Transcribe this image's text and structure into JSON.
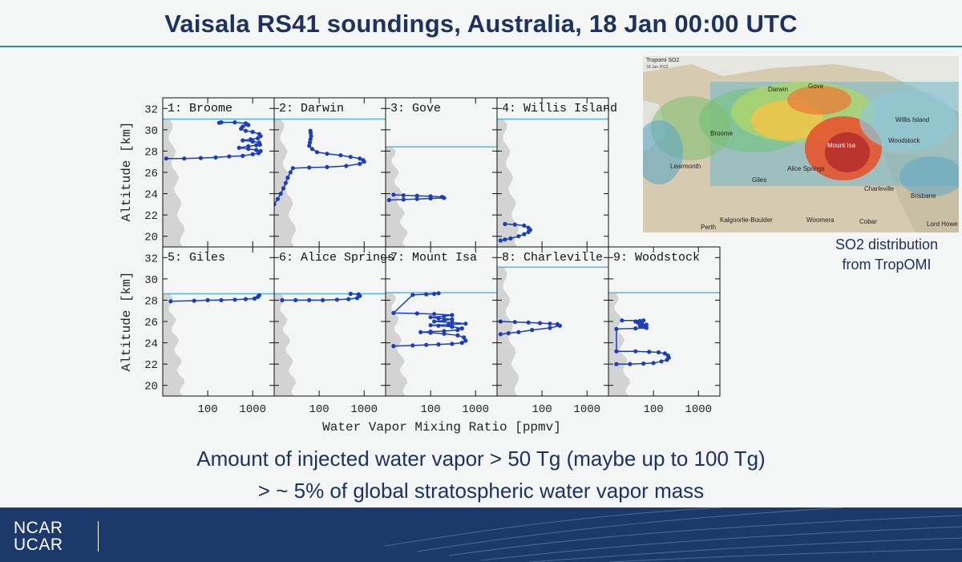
{
  "slide": {
    "title": "Vaisala RS41 soundings, Australia, 18 Jan 00:00 UTC",
    "statement_line1": "Amount of injected water vapor > 50 Tg (maybe up to 100 Tg)",
    "statement_line2": "> ~ 5% of global stratospheric water vapor mass"
  },
  "footer": {
    "logo_line1": "NCAR",
    "logo_line2": "UCAR"
  },
  "map": {
    "title": "Tropomi SO2",
    "subtitle": "18 Jan 2022",
    "caption_line1": "SO2 distribution",
    "caption_line2": "from TropOMI",
    "labels": [
      "Darwin",
      "Gove",
      "Broome",
      "Willis Island",
      "Mount Isa",
      "Woodstock",
      "Learmonth",
      "Giles",
      "Alice Springs",
      "Charleville",
      "Brisbane",
      "Kalgoorlie-Boulder",
      "Woomera",
      "Cobar",
      "Lord Howe",
      "Perth"
    ]
  },
  "colors": {
    "title": "#1c3262",
    "sounding": "#1a3ebd",
    "tropopause": "#58b7df",
    "background": "#d3d3d3",
    "footer": "#1b3a6b"
  },
  "chart_data": {
    "type": "scatter",
    "x_scale": "log",
    "xlim": [
      10,
      3000
    ],
    "ylim": [
      19,
      33
    ],
    "xlabel": "Water Vapor Mixing Ratio [ppmv]",
    "ylabel": "Altitude [km]",
    "x_ticks": [
      "100",
      "1000"
    ],
    "y_ticks": [
      20,
      22,
      24,
      26,
      28,
      30,
      32
    ],
    "panels": [
      {
        "name": "1: Broome",
        "tropopause_km": 31.0,
        "points": [
          [
            12,
            27.3
          ],
          [
            30,
            27.3
          ],
          [
            70,
            27.35
          ],
          [
            150,
            27.4
          ],
          [
            300,
            27.5
          ],
          [
            600,
            27.55
          ],
          [
            1000,
            27.7
          ],
          [
            1350,
            27.8
          ],
          [
            1500,
            28.0
          ],
          [
            1200,
            28.1
          ],
          [
            800,
            28.2
          ],
          [
            500,
            28.3
          ],
          [
            800,
            28.45
          ],
          [
            1200,
            28.55
          ],
          [
            1450,
            28.6
          ],
          [
            1400,
            28.8
          ],
          [
            1000,
            28.9
          ],
          [
            600,
            29.0
          ],
          [
            900,
            29.1
          ],
          [
            1300,
            29.2
          ],
          [
            1500,
            29.4
          ],
          [
            1400,
            29.6
          ],
          [
            1000,
            29.8
          ],
          [
            700,
            29.9
          ],
          [
            550,
            30.1
          ],
          [
            600,
            30.3
          ],
          [
            800,
            30.45
          ],
          [
            700,
            30.6
          ],
          [
            400,
            30.7
          ],
          [
            200,
            30.7
          ],
          [
            180,
            30.65
          ]
        ]
      },
      {
        "name": "2: Darwin",
        "tropopause_km": 31.0,
        "points": [
          [
            10,
            23.0
          ],
          [
            12,
            23.5
          ],
          [
            14,
            24.0
          ],
          [
            16,
            24.5
          ],
          [
            18,
            25.0
          ],
          [
            20,
            25.5
          ],
          [
            23,
            26.0
          ],
          [
            26,
            26.4
          ],
          [
            60,
            26.45
          ],
          [
            150,
            26.5
          ],
          [
            400,
            26.6
          ],
          [
            800,
            26.8
          ],
          [
            1000,
            27.0
          ],
          [
            950,
            27.15
          ],
          [
            800,
            27.3
          ],
          [
            500,
            27.45
          ],
          [
            300,
            27.6
          ],
          [
            150,
            27.75
          ],
          [
            90,
            27.9
          ],
          [
            70,
            28.2
          ],
          [
            60,
            28.5
          ],
          [
            62,
            28.8
          ],
          [
            64,
            29.1
          ],
          [
            66,
            29.4
          ],
          [
            65,
            29.7
          ],
          [
            64,
            29.9
          ]
        ]
      },
      {
        "name": "3: Gove",
        "tropopause_km": 28.4,
        "points": [
          [
            12,
            23.4
          ],
          [
            25,
            23.45
          ],
          [
            50,
            23.5
          ],
          [
            100,
            23.55
          ],
          [
            200,
            23.6
          ],
          [
            180,
            23.7
          ],
          [
            100,
            23.75
          ],
          [
            50,
            23.8
          ],
          [
            25,
            23.85
          ],
          [
            15,
            23.9
          ]
        ]
      },
      {
        "name": "4: Willis Island",
        "tropopause_km": 31.0,
        "points": [
          [
            12,
            19.6
          ],
          [
            15,
            19.7
          ],
          [
            20,
            19.8
          ],
          [
            30,
            20.0
          ],
          [
            40,
            20.2
          ],
          [
            50,
            20.4
          ],
          [
            55,
            20.6
          ],
          [
            50,
            20.8
          ],
          [
            40,
            21.0
          ],
          [
            25,
            21.1
          ],
          [
            15,
            21.15
          ]
        ]
      },
      {
        "name": "5: Giles",
        "tropopause_km": 28.6,
        "points": [
          [
            15,
            27.9
          ],
          [
            50,
            27.95
          ],
          [
            100,
            28.0
          ],
          [
            200,
            28.0
          ],
          [
            400,
            28.05
          ],
          [
            700,
            28.1
          ],
          [
            1100,
            28.15
          ],
          [
            1300,
            28.3
          ],
          [
            1400,
            28.45
          ]
        ]
      },
      {
        "name": "6: Alice Springs",
        "tropopause_km": 28.6,
        "points": [
          [
            15,
            28.0
          ],
          [
            30,
            28.0
          ],
          [
            60,
            28.0
          ],
          [
            120,
            28.0
          ],
          [
            250,
            28.05
          ],
          [
            450,
            28.1
          ],
          [
            700,
            28.2
          ],
          [
            800,
            28.4
          ],
          [
            750,
            28.55
          ],
          [
            500,
            28.6
          ]
        ]
      },
      {
        "name": "7: Mount Isa",
        "tropopause_km": 28.7,
        "points": [
          [
            15,
            23.7
          ],
          [
            40,
            23.75
          ],
          [
            80,
            23.8
          ],
          [
            150,
            23.85
          ],
          [
            300,
            23.9
          ],
          [
            500,
            24.0
          ],
          [
            600,
            24.2
          ],
          [
            550,
            24.5
          ],
          [
            400,
            24.7
          ],
          [
            200,
            24.85
          ],
          [
            100,
            24.95
          ],
          [
            60,
            25.0
          ],
          [
            100,
            25.05
          ],
          [
            200,
            25.1
          ],
          [
            400,
            25.2
          ],
          [
            500,
            25.35
          ],
          [
            300,
            25.5
          ],
          [
            150,
            25.6
          ],
          [
            100,
            25.65
          ],
          [
            250,
            25.7
          ],
          [
            600,
            25.8
          ],
          [
            300,
            25.9
          ],
          [
            120,
            26.0
          ],
          [
            200,
            26.1
          ],
          [
            300,
            26.2
          ],
          [
            150,
            26.3
          ],
          [
            100,
            26.4
          ],
          [
            200,
            26.5
          ],
          [
            300,
            26.6
          ],
          [
            120,
            26.7
          ],
          [
            50,
            26.75
          ],
          [
            15,
            26.8
          ],
          [
            40,
            28.5
          ],
          [
            80,
            28.55
          ],
          [
            120,
            28.6
          ],
          [
            150,
            28.65
          ]
        ]
      },
      {
        "name": "8: Charleville",
        "tropopause_km": 31.1,
        "points": [
          [
            12,
            24.8
          ],
          [
            18,
            24.9
          ],
          [
            30,
            25.0
          ],
          [
            60,
            25.2
          ],
          [
            150,
            25.4
          ],
          [
            250,
            25.6
          ],
          [
            220,
            25.75
          ],
          [
            150,
            25.8
          ],
          [
            90,
            25.85
          ],
          [
            50,
            25.9
          ],
          [
            25,
            25.95
          ],
          [
            12,
            26.0
          ]
        ]
      },
      {
        "name": "9: Woodstock",
        "tropopause_km": 28.7,
        "points": [
          [
            15,
            22.0
          ],
          [
            30,
            22.0
          ],
          [
            60,
            22.05
          ],
          [
            100,
            22.1
          ],
          [
            150,
            22.25
          ],
          [
            200,
            22.4
          ],
          [
            220,
            22.6
          ],
          [
            210,
            22.8
          ],
          [
            180,
            23.0
          ],
          [
            130,
            23.1
          ],
          [
            80,
            23.15
          ],
          [
            40,
            23.2
          ],
          [
            15,
            23.2
          ],
          [
            15,
            25.3
          ],
          [
            40,
            25.35
          ],
          [
            70,
            25.4
          ],
          [
            60,
            25.5
          ],
          [
            50,
            25.6
          ],
          [
            70,
            25.7
          ],
          [
            55,
            25.8
          ],
          [
            45,
            25.9
          ],
          [
            40,
            26.0
          ],
          [
            50,
            26.05
          ],
          [
            60,
            26.1
          ],
          [
            20,
            26.1
          ]
        ]
      }
    ]
  }
}
